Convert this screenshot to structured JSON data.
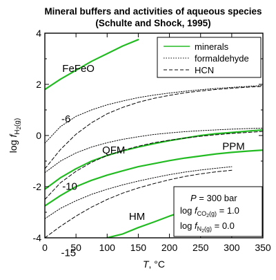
{
  "chart_data": {
    "type": "line",
    "title": "Mineral buffers and activities of aqueous species",
    "subtitle": "(Schulte and Shock, 1995)",
    "xlabel": {
      "italic": "T",
      "rest": ", °C"
    },
    "ylabel": {
      "prefix": "log ",
      "f": "f",
      "sub": "H",
      "sub2": "2",
      "paren": "(g)"
    },
    "xlim": [
      0,
      350
    ],
    "ylim": [
      -4,
      4
    ],
    "xticks": [
      "0",
      "50",
      "100",
      "150",
      "200",
      "250",
      "300",
      "350"
    ],
    "yticks": [
      "-4",
      "-2",
      "0",
      "2",
      "4"
    ],
    "legend": {
      "position": "top-right",
      "entries": [
        {
          "label": "minerals",
          "style": "solid",
          "color": "#22bb22"
        },
        {
          "label": "formaldehyde",
          "style": "dotted",
          "color": "#000000"
        },
        {
          "label": "HCN",
          "style": "dashed",
          "color": "#000000"
        }
      ]
    },
    "conditions": {
      "p_var": "P",
      "p_rest": " = 300 bar",
      "co2": {
        "prefix": "log ",
        "f": "f",
        "sub": "CO",
        "sub2": "2",
        "paren": "(g)",
        "rest": " = 1.0"
      },
      "n2": {
        "prefix": "log ",
        "f": "f",
        "sub": "N",
        "sub2": "2",
        "paren": "(g)",
        "rest": " = 0.0"
      }
    },
    "series": [
      {
        "name": "FeFeO",
        "style": "solid",
        "color": "#22bb22",
        "x": [
          0,
          25,
          50,
          75,
          100,
          125,
          150
        ],
        "y": [
          1.8,
          2.2,
          2.55,
          2.9,
          3.2,
          3.5,
          3.75
        ]
      },
      {
        "name": "QFM",
        "style": "solid",
        "color": "#22bb22",
        "x": [
          0,
          25,
          50,
          75,
          100,
          125,
          150,
          175,
          200,
          225,
          250,
          275,
          300,
          325,
          350
        ],
        "y": [
          -2.1,
          -1.65,
          -1.3,
          -1.0,
          -0.78,
          -0.6,
          -0.45,
          -0.32,
          -0.2,
          -0.1,
          0.0,
          0.07,
          0.12,
          0.17,
          0.22
        ]
      },
      {
        "name": "PPM",
        "style": "solid",
        "color": "#22bb22",
        "x": [
          0,
          25,
          50,
          75,
          100,
          125,
          150,
          175,
          200,
          225,
          250,
          275,
          300,
          325,
          350
        ],
        "y": [
          -2.75,
          -2.35,
          -2.0,
          -1.75,
          -1.55,
          -1.38,
          -1.22,
          -1.1,
          -0.98,
          -0.88,
          -0.8,
          -0.72,
          -0.66,
          -0.61,
          -0.57
        ]
      },
      {
        "name": "HM",
        "style": "solid",
        "color": "#22bb22",
        "x": [
          100,
          125,
          150,
          175,
          200,
          225,
          250,
          275,
          300,
          325,
          350
        ],
        "y": [
          -4.0,
          -3.85,
          -3.6,
          -3.38,
          -3.15,
          -2.95,
          -2.75,
          -2.58,
          -2.42,
          -2.27,
          -2.13
        ]
      },
      {
        "name": "",
        "style": "dotted",
        "color": "#000000",
        "x": [
          0,
          25,
          50,
          75,
          100,
          125,
          150,
          175,
          200,
          225,
          250,
          275,
          300,
          325,
          350
        ],
        "y": [
          -0.3,
          0.35,
          0.75,
          1.0,
          1.2,
          1.35,
          1.48,
          1.58,
          1.66,
          1.73,
          1.79,
          1.84,
          1.88,
          1.92,
          1.96
        ]
      },
      {
        "name": "",
        "style": "dashed",
        "color": "#000000",
        "x": [
          0,
          25,
          50,
          75,
          100,
          125,
          150,
          175,
          200,
          225,
          250,
          275,
          300,
          325,
          350
        ],
        "y": [
          -1.3,
          -0.55,
          0.05,
          0.5,
          0.85,
          1.1,
          1.3,
          1.45,
          1.57,
          1.67,
          1.74,
          1.8,
          1.85,
          1.89,
          1.92
        ]
      },
      {
        "name": "",
        "style": "dotted",
        "color": "#000000",
        "x": [
          0,
          25,
          50,
          75,
          100,
          125,
          150,
          175,
          200,
          225,
          250,
          275,
          300,
          325,
          350
        ],
        "y": [
          -1.45,
          -1.0,
          -0.68,
          -0.45,
          -0.28,
          -0.15,
          -0.05,
          0.04,
          0.1,
          0.15,
          0.19,
          0.22,
          0.25,
          0.27,
          0.29
        ]
      },
      {
        "name": "",
        "style": "dashed",
        "color": "#000000",
        "x": [
          0,
          25,
          50,
          75,
          100,
          125,
          150,
          175,
          200,
          225,
          250,
          275,
          300,
          325,
          350
        ],
        "y": [
          -2.5,
          -1.85,
          -1.4,
          -1.05,
          -0.78,
          -0.58,
          -0.42,
          -0.28,
          -0.18,
          -0.1,
          -0.03,
          0.03,
          0.08,
          0.12,
          0.16
        ]
      },
      {
        "name": "",
        "style": "dotted",
        "color": "#000000",
        "x": [
          0,
          25,
          50,
          75,
          100,
          125,
          150,
          175,
          200,
          225,
          250,
          275,
          300
        ],
        "y": [
          -3.25,
          -2.85,
          -2.55,
          -2.3,
          -2.1,
          -1.93,
          -1.78,
          -1.65,
          -1.53,
          -1.43,
          -1.35,
          -1.28,
          -1.22
        ]
      },
      {
        "name": "",
        "style": "dashed",
        "color": "#000000",
        "x": [
          0,
          25,
          50,
          75,
          100,
          125,
          150,
          175,
          200,
          225,
          250,
          275,
          300
        ],
        "y": [
          -4.0,
          -3.55,
          -3.15,
          -2.8,
          -2.5,
          -2.25,
          -2.05,
          -1.88,
          -1.73,
          -1.6,
          -1.5,
          -1.42,
          -1.36
        ]
      }
    ],
    "annotations": [
      {
        "text": "FeFeO",
        "x": 28,
        "y": 2.48,
        "anchor": "start"
      },
      {
        "text": "QFM",
        "x": 92,
        "y": -0.7,
        "anchor": "start"
      },
      {
        "text": "PPM",
        "x": 285,
        "y": -0.55,
        "anchor": "start"
      },
      {
        "text": "HM",
        "x": 135,
        "y": -3.3,
        "anchor": "start"
      },
      {
        "text": "-6",
        "x": 34,
        "y": 0.52,
        "anchor": "middle"
      },
      {
        "text": "-10",
        "x": 40,
        "y": -2.12,
        "anchor": "middle"
      },
      {
        "text": "-15",
        "x": 38,
        "y": -4.72,
        "anchor": "middle"
      }
    ]
  }
}
